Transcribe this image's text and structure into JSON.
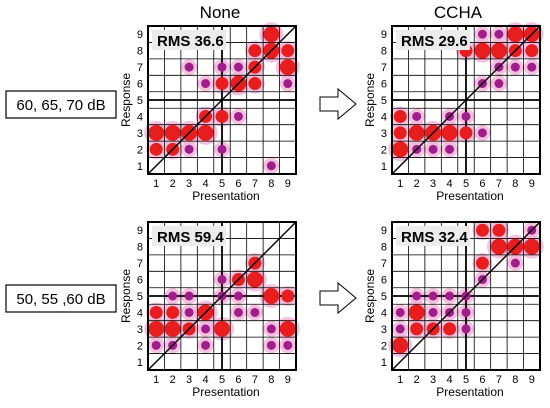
{
  "figure": {
    "column_titles": [
      "None",
      "CCHA"
    ],
    "row_labels": [
      "60, 65, 70 dB",
      "50, 55 ,60 dB"
    ]
  },
  "colors": {
    "small_marker": "#a01e8c",
    "large_marker": "#e81e1e",
    "glow": "#f4b6da",
    "grid": "#000000"
  },
  "chart_data": [
    {
      "type": "scatter",
      "panel": "row1-none",
      "rms_label": "RMS 36.6",
      "xlabel": "Presentation",
      "ylabel": "Response",
      "xlim": [
        0.5,
        9.5
      ],
      "ylim": [
        0.5,
        9.5
      ],
      "x_ticks": [
        "1",
        "2",
        "3",
        "4",
        "5",
        "6",
        "7",
        "8",
        "9"
      ],
      "y_ticks": [
        "1",
        "2",
        "3",
        "4",
        "5",
        "6",
        "7",
        "8",
        "9"
      ],
      "grid": true,
      "points": [
        {
          "x": 1,
          "y": 3,
          "count": 3
        },
        {
          "x": 2,
          "y": 3,
          "count": 3
        },
        {
          "x": 3,
          "y": 3,
          "count": 3
        },
        {
          "x": 4,
          "y": 3,
          "count": 3
        },
        {
          "x": 1,
          "y": 2,
          "count": 2
        },
        {
          "x": 2,
          "y": 2,
          "count": 2
        },
        {
          "x": 3,
          "y": 2,
          "count": 1
        },
        {
          "x": 4,
          "y": 4,
          "count": 2
        },
        {
          "x": 5,
          "y": 4,
          "count": 2
        },
        {
          "x": 6,
          "y": 4,
          "count": 1
        },
        {
          "x": 5,
          "y": 2,
          "count": 1
        },
        {
          "x": 3,
          "y": 7,
          "count": 1
        },
        {
          "x": 4,
          "y": 6,
          "count": 1
        },
        {
          "x": 5,
          "y": 7,
          "count": 1
        },
        {
          "x": 5,
          "y": 6,
          "count": 2
        },
        {
          "x": 6,
          "y": 6,
          "count": 3
        },
        {
          "x": 6,
          "y": 7,
          "count": 1
        },
        {
          "x": 7,
          "y": 6,
          "count": 2
        },
        {
          "x": 7,
          "y": 7,
          "count": 2
        },
        {
          "x": 7,
          "y": 8,
          "count": 2
        },
        {
          "x": 8,
          "y": 9,
          "count": 3
        },
        {
          "x": 8,
          "y": 8,
          "count": 3
        },
        {
          "x": 8,
          "y": 1,
          "count": 1
        },
        {
          "x": 9,
          "y": 8,
          "count": 2
        },
        {
          "x": 9,
          "y": 7,
          "count": 3
        },
        {
          "x": 9,
          "y": 6,
          "count": 1
        }
      ]
    },
    {
      "type": "scatter",
      "panel": "row1-ccha",
      "rms_label": "RMS 29.6",
      "xlabel": "Presentation",
      "ylabel": "Response",
      "xlim": [
        0.5,
        9.5
      ],
      "ylim": [
        0.5,
        9.5
      ],
      "x_ticks": [
        "1",
        "2",
        "3",
        "4",
        "5",
        "6",
        "7",
        "8",
        "9"
      ],
      "y_ticks": [
        "1",
        "2",
        "3",
        "4",
        "5",
        "6",
        "7",
        "8",
        "9"
      ],
      "grid": true,
      "points": [
        {
          "x": 1,
          "y": 4,
          "count": 2
        },
        {
          "x": 1,
          "y": 3,
          "count": 2
        },
        {
          "x": 1,
          "y": 2,
          "count": 3
        },
        {
          "x": 2,
          "y": 4,
          "count": 1
        },
        {
          "x": 2,
          "y": 3,
          "count": 3
        },
        {
          "x": 2,
          "y": 2,
          "count": 1
        },
        {
          "x": 3,
          "y": 3,
          "count": 3
        },
        {
          "x": 3,
          "y": 2,
          "count": 1
        },
        {
          "x": 4,
          "y": 4,
          "count": 1
        },
        {
          "x": 4,
          "y": 3,
          "count": 3
        },
        {
          "x": 4,
          "y": 2,
          "count": 1
        },
        {
          "x": 5,
          "y": 3,
          "count": 2
        },
        {
          "x": 5,
          "y": 4,
          "count": 1
        },
        {
          "x": 5,
          "y": 8,
          "count": 2
        },
        {
          "x": 6,
          "y": 9,
          "count": 1
        },
        {
          "x": 6,
          "y": 8,
          "count": 3
        },
        {
          "x": 6,
          "y": 6,
          "count": 1
        },
        {
          "x": 6,
          "y": 3,
          "count": 1
        },
        {
          "x": 7,
          "y": 9,
          "count": 1
        },
        {
          "x": 7,
          "y": 8,
          "count": 3
        },
        {
          "x": 7,
          "y": 7,
          "count": 1
        },
        {
          "x": 7,
          "y": 6,
          "count": 1
        },
        {
          "x": 8,
          "y": 9,
          "count": 3
        },
        {
          "x": 8,
          "y": 8,
          "count": 2
        },
        {
          "x": 8,
          "y": 7,
          "count": 1
        },
        {
          "x": 9,
          "y": 9,
          "count": 3
        },
        {
          "x": 9,
          "y": 8,
          "count": 2
        },
        {
          "x": 9,
          "y": 7,
          "count": 1
        }
      ]
    },
    {
      "type": "scatter",
      "panel": "row2-none",
      "rms_label": "RMS 59.4",
      "xlabel": "Presentation",
      "ylabel": "Response",
      "xlim": [
        0.5,
        9.5
      ],
      "ylim": [
        0.5,
        9.5
      ],
      "x_ticks": [
        "1",
        "2",
        "3",
        "4",
        "5",
        "6",
        "7",
        "8",
        "9"
      ],
      "y_ticks": [
        "1",
        "2",
        "3",
        "4",
        "5",
        "6",
        "7",
        "8",
        "9"
      ],
      "grid": true,
      "points": [
        {
          "x": 1,
          "y": 4,
          "count": 2
        },
        {
          "x": 1,
          "y": 3,
          "count": 3
        },
        {
          "x": 1,
          "y": 2,
          "count": 1
        },
        {
          "x": 2,
          "y": 5,
          "count": 1
        },
        {
          "x": 2,
          "y": 4,
          "count": 2
        },
        {
          "x": 2,
          "y": 3,
          "count": 3
        },
        {
          "x": 2,
          "y": 2,
          "count": 1
        },
        {
          "x": 3,
          "y": 5,
          "count": 1
        },
        {
          "x": 3,
          "y": 4,
          "count": 1
        },
        {
          "x": 3,
          "y": 3,
          "count": 2
        },
        {
          "x": 4,
          "y": 4,
          "count": 3
        },
        {
          "x": 4,
          "y": 3,
          "count": 1
        },
        {
          "x": 4,
          "y": 2,
          "count": 1
        },
        {
          "x": 5,
          "y": 6,
          "count": 1
        },
        {
          "x": 5,
          "y": 5,
          "count": 1
        },
        {
          "x": 5,
          "y": 3,
          "count": 3
        },
        {
          "x": 6,
          "y": 6,
          "count": 2
        },
        {
          "x": 6,
          "y": 5,
          "count": 1
        },
        {
          "x": 6,
          "y": 4,
          "count": 1
        },
        {
          "x": 7,
          "y": 7,
          "count": 2
        },
        {
          "x": 7,
          "y": 6,
          "count": 3
        },
        {
          "x": 7,
          "y": 4,
          "count": 1
        },
        {
          "x": 8,
          "y": 5,
          "count": 3
        },
        {
          "x": 8,
          "y": 3,
          "count": 1
        },
        {
          "x": 8,
          "y": 2,
          "count": 1
        },
        {
          "x": 9,
          "y": 5,
          "count": 2
        },
        {
          "x": 9,
          "y": 3,
          "count": 3
        },
        {
          "x": 9,
          "y": 2,
          "count": 1
        }
      ]
    },
    {
      "type": "scatter",
      "panel": "row2-ccha",
      "rms_label": "RMS 32.4",
      "xlabel": "Presentation",
      "ylabel": "Response",
      "xlim": [
        0.5,
        9.5
      ],
      "ylim": [
        0.5,
        9.5
      ],
      "x_ticks": [
        "1",
        "2",
        "3",
        "4",
        "5",
        "6",
        "7",
        "8",
        "9"
      ],
      "y_ticks": [
        "1",
        "2",
        "3",
        "4",
        "5",
        "6",
        "7",
        "8",
        "9"
      ],
      "grid": true,
      "points": [
        {
          "x": 1,
          "y": 4,
          "count": 1
        },
        {
          "x": 1,
          "y": 3,
          "count": 1
        },
        {
          "x": 1,
          "y": 2,
          "count": 3
        },
        {
          "x": 2,
          "y": 5,
          "count": 1
        },
        {
          "x": 2,
          "y": 4,
          "count": 3
        },
        {
          "x": 2,
          "y": 3,
          "count": 2
        },
        {
          "x": 3,
          "y": 5,
          "count": 1
        },
        {
          "x": 3,
          "y": 4,
          "count": 1
        },
        {
          "x": 3,
          "y": 3,
          "count": 2
        },
        {
          "x": 4,
          "y": 5,
          "count": 1
        },
        {
          "x": 4,
          "y": 4,
          "count": 1
        },
        {
          "x": 4,
          "y": 3,
          "count": 2
        },
        {
          "x": 5,
          "y": 5,
          "count": 1
        },
        {
          "x": 5,
          "y": 4,
          "count": 1
        },
        {
          "x": 5,
          "y": 3,
          "count": 1
        },
        {
          "x": 6,
          "y": 9,
          "count": 2
        },
        {
          "x": 6,
          "y": 7,
          "count": 2
        },
        {
          "x": 6,
          "y": 6,
          "count": 1
        },
        {
          "x": 7,
          "y": 9,
          "count": 2
        },
        {
          "x": 7,
          "y": 8,
          "count": 3
        },
        {
          "x": 8,
          "y": 8,
          "count": 3
        },
        {
          "x": 8,
          "y": 7,
          "count": 1
        },
        {
          "x": 9,
          "y": 9,
          "count": 1
        },
        {
          "x": 9,
          "y": 8,
          "count": 3
        }
      ]
    }
  ]
}
